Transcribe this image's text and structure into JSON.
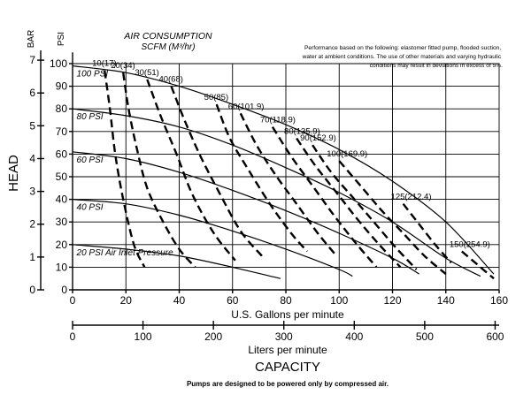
{
  "chart_data": {
    "type": "line",
    "title": "AIR CONSUMPTION",
    "subtitle": "SCFM (M³/hr)",
    "note": "Performance based on the following: elastomer fitted pump, flooded suction, water at ambient conditions. The use of other materials and varying hydraulic conditions may result in deviations in excess of 5%.",
    "xlabel": "U.S. Gallons per minute",
    "xlabel2": "Liters per minute",
    "ylabel": "HEAD",
    "unit_psi": "PSI",
    "unit_bar": "BAR",
    "capacity_label": "CAPACITY",
    "footer": "Pumps are designed to be powered only by compressed air.",
    "xlim": [
      0,
      160
    ],
    "ylim": [
      0,
      105
    ],
    "x_ticks": [
      0,
      20,
      40,
      60,
      80,
      100,
      120,
      140,
      160
    ],
    "y_ticks_psi": [
      0,
      10,
      20,
      30,
      40,
      50,
      60,
      70,
      80,
      90,
      100
    ],
    "y_ticks_bar": [
      0,
      1,
      2,
      3,
      4,
      5,
      6,
      7
    ],
    "lpm_ticks": [
      0,
      100,
      200,
      300,
      400,
      500,
      600
    ],
    "lpm_range": [
      0,
      605.7
    ],
    "grid": true,
    "pressure_series": [
      {
        "name": "100 PSI",
        "x": [
          0,
          20,
          40,
          60,
          80,
          100,
          120,
          140,
          158
        ],
        "y": [
          99,
          96,
          90,
          82,
          73,
          62,
          48,
          30,
          7
        ]
      },
      {
        "name": "80 PSI",
        "x": [
          0,
          20,
          40,
          60,
          80,
          100,
          120,
          140,
          153
        ],
        "y": [
          80,
          77,
          72,
          64,
          54,
          43,
          30,
          14,
          6
        ]
      },
      {
        "name": "60 PSI",
        "x": [
          0,
          20,
          40,
          60,
          80,
          100,
          120,
          130
        ],
        "y": [
          61,
          58,
          52,
          44,
          35,
          25,
          14,
          7
        ]
      },
      {
        "name": "40 PSI",
        "x": [
          0,
          20,
          40,
          60,
          80,
          100,
          105
        ],
        "y": [
          40,
          38,
          33,
          26,
          18,
          9,
          6
        ]
      },
      {
        "name": "20 PSI Air Inlet Pressure",
        "x": [
          0,
          20,
          40,
          60,
          78
        ],
        "y": [
          20,
          18,
          15,
          10,
          5
        ]
      }
    ],
    "air_series": [
      {
        "name": "10(17)",
        "x": [
          12,
          14,
          16,
          19,
          23,
          27
        ],
        "y": [
          97,
          80,
          60,
          40,
          20,
          10
        ]
      },
      {
        "name": "20(34)",
        "x": [
          19,
          21,
          24,
          28,
          34,
          40,
          46
        ],
        "y": [
          96,
          80,
          63,
          45,
          30,
          18,
          10
        ]
      },
      {
        "name": "30(51)",
        "x": [
          28,
          33,
          39,
          45,
          53,
          61
        ],
        "y": [
          93,
          77,
          60,
          42,
          25,
          13
        ]
      },
      {
        "name": "40(68)",
        "x": [
          37,
          42,
          48,
          55,
          63,
          71
        ],
        "y": [
          90,
          75,
          59,
          43,
          26,
          15
        ]
      },
      {
        "name": "50(85)",
        "x": [
          54,
          59,
          66,
          74,
          82,
          88
        ],
        "y": [
          82,
          67,
          53,
          38,
          25,
          17
        ]
      },
      {
        "name": "60(101.9)",
        "x": [
          63,
          69,
          76,
          84,
          92,
          99
        ],
        "y": [
          78,
          64,
          51,
          38,
          25,
          15
        ]
      },
      {
        "name": "70(118.9)",
        "x": [
          75,
          82,
          90,
          98,
          106,
          114
        ],
        "y": [
          72,
          59,
          46,
          33,
          21,
          10
        ]
      },
      {
        "name": "80(135.9)",
        "x": [
          84,
          91,
          99,
          107,
          115,
          123
        ],
        "y": [
          67,
          55,
          43,
          31,
          20,
          10
        ]
      },
      {
        "name": "90(152.9)",
        "x": [
          90,
          97,
          105,
          113,
          121,
          129
        ],
        "y": [
          64,
          52,
          41,
          30,
          19,
          9
        ]
      },
      {
        "name": "100(169.9)",
        "x": [
          100,
          108,
          116,
          124,
          132,
          140
        ],
        "y": [
          57,
          46,
          35,
          25,
          15,
          7
        ]
      },
      {
        "name": "125(212.4)",
        "x": [
          124,
          130,
          136,
          142
        ],
        "y": [
          38,
          29,
          20,
          12
        ]
      },
      {
        "name": "150(254.9)",
        "x": [
          146,
          150,
          154,
          158
        ],
        "y": [
          17,
          13,
          9,
          5
        ]
      }
    ]
  }
}
